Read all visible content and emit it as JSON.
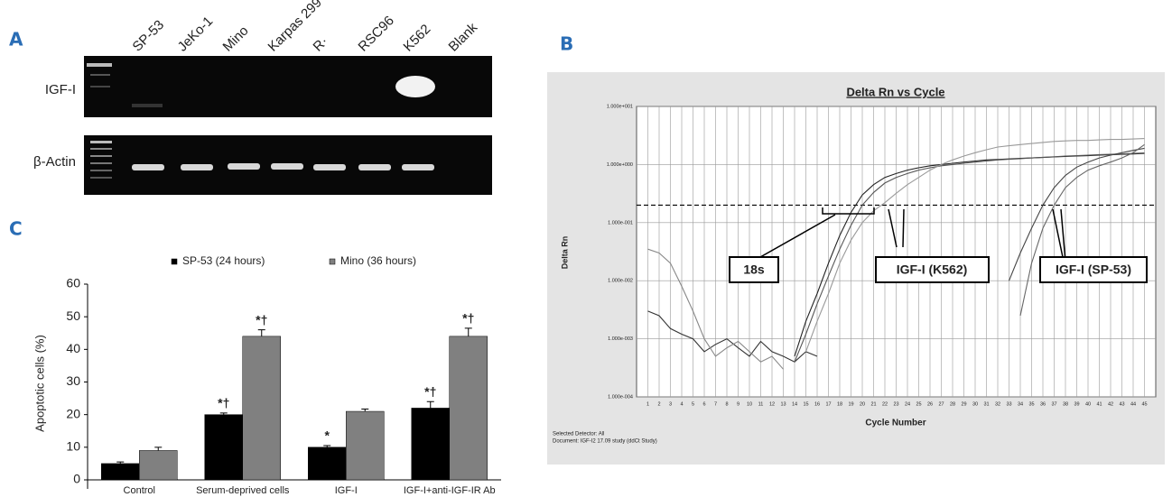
{
  "gel": {
    "label": "A",
    "lanes": [
      "SP-53",
      "JeKo-1",
      "Mino",
      "Karpas 299",
      "R·",
      "RSC96",
      "K562",
      "Blank"
    ],
    "rows": [
      "IGF-I",
      "β-Actin"
    ]
  },
  "chart_data": [
    {
      "type": "line",
      "panel": "B",
      "title": "Delta Rn vs Cycle",
      "xlabel": "Cycle Number",
      "ylabel": "Delta Rn",
      "log_y": true,
      "grid": true,
      "xlim": [
        0,
        46
      ],
      "xticks": [
        1,
        2,
        3,
        4,
        5,
        6,
        7,
        8,
        9,
        10,
        11,
        12,
        13,
        14,
        15,
        16,
        17,
        18,
        19,
        20,
        21,
        22,
        23,
        24,
        25,
        26,
        27,
        28,
        29,
        30,
        31,
        32,
        33,
        34,
        35,
        36,
        37,
        38,
        39,
        40,
        41,
        42,
        43,
        44,
        45
      ],
      "ylim": [
        0.0001,
        10
      ],
      "yticks": [
        {
          "value": 0.0001,
          "label": "1.000e-004"
        },
        {
          "value": 0.001,
          "label": "1.000e-003"
        },
        {
          "value": 0.01,
          "label": "1.000e-002"
        },
        {
          "value": 0.1,
          "label": "1.000e-001"
        },
        {
          "value": 1,
          "label": "1.000e+000"
        },
        {
          "value": 10,
          "label": "1.000e+001"
        }
      ],
      "threshold": 0.2,
      "annotations": [
        "18s",
        "IGF-I (K562)",
        "IGF-I (SP-53)"
      ],
      "footnotes": [
        "Selected Detector: All",
        "Document: IGF-I2 17.09 study (ddCt Study)"
      ],
      "series": [
        {
          "color": "#333333",
          "x": [
            1,
            2,
            3,
            4,
            5,
            6,
            7,
            8,
            9,
            10,
            11,
            12,
            13,
            14,
            15,
            16
          ],
          "values": [
            0.003,
            0.0025,
            0.0015,
            0.0012,
            0.001,
            0.0006,
            0.0008,
            0.001,
            0.0007,
            0.0005,
            0.0009,
            0.0006,
            0.0005,
            0.0004,
            0.0006,
            0.0005
          ]
        },
        {
          "color": "#888888",
          "x": [
            1,
            2,
            3,
            4,
            5,
            6,
            7,
            8,
            9,
            10,
            11,
            12,
            13
          ],
          "values": [
            0.035,
            0.03,
            0.02,
            0.008,
            0.003,
            0.001,
            0.0005,
            0.0007,
            0.0009,
            0.0006,
            0.0004,
            0.0005,
            0.0003
          ]
        },
        {
          "color": "#222222",
          "x": [
            14,
            15,
            16,
            17,
            18,
            19,
            20,
            21,
            22,
            23,
            24,
            25,
            26,
            27,
            28,
            29,
            30,
            31,
            32,
            33,
            34,
            35,
            36,
            37,
            38,
            39,
            40,
            41,
            42,
            43,
            44,
            45
          ],
          "values": [
            0.0005,
            0.002,
            0.006,
            0.02,
            0.06,
            0.15,
            0.3,
            0.45,
            0.6,
            0.7,
            0.8,
            0.88,
            0.95,
            1.0,
            1.05,
            1.1,
            1.15,
            1.2,
            1.22,
            1.25,
            1.28,
            1.3,
            1.32,
            1.35,
            1.38,
            1.4,
            1.42,
            1.45,
            1.47,
            1.5,
            1.52,
            1.55
          ]
        },
        {
          "color": "#555555",
          "x": [
            14,
            15,
            16,
            17,
            18,
            19,
            20,
            21,
            22,
            23,
            24,
            25,
            26,
            27,
            28,
            29,
            30,
            31,
            32,
            33,
            34,
            35,
            36,
            37,
            38,
            39,
            40,
            41,
            42,
            43,
            44,
            45
          ],
          "values": [
            0.0004,
            0.0012,
            0.004,
            0.012,
            0.035,
            0.09,
            0.2,
            0.33,
            0.48,
            0.6,
            0.7,
            0.8,
            0.88,
            0.95,
            1.0,
            1.05,
            1.1,
            1.15,
            1.2,
            1.23,
            1.26,
            1.3,
            1.33,
            1.36,
            1.4,
            1.42,
            1.45,
            1.48,
            1.5,
            1.52,
            1.55,
            1.58
          ]
        },
        {
          "color": "#999999",
          "x": [
            15,
            16,
            17,
            18,
            19,
            20,
            21,
            22,
            23,
            24,
            25,
            26,
            27,
            28,
            29,
            30,
            31,
            32,
            33,
            34,
            35,
            36,
            37,
            38,
            39,
            40,
            41,
            42,
            43,
            44,
            45
          ],
          "values": [
            0.0006,
            0.002,
            0.006,
            0.02,
            0.05,
            0.1,
            0.16,
            0.22,
            0.32,
            0.45,
            0.6,
            0.8,
            1.0,
            1.2,
            1.4,
            1.6,
            1.8,
            2.0,
            2.1,
            2.2,
            2.3,
            2.4,
            2.5,
            2.55,
            2.6,
            2.6,
            2.65,
            2.7,
            2.7,
            2.75,
            2.8
          ]
        },
        {
          "color": "#444444",
          "x": [
            33,
            34,
            35,
            36,
            37,
            38,
            39,
            40,
            41,
            42,
            43,
            44,
            45
          ],
          "values": [
            0.01,
            0.03,
            0.08,
            0.2,
            0.4,
            0.65,
            0.9,
            1.1,
            1.3,
            1.45,
            1.6,
            1.75,
            1.9
          ]
        },
        {
          "color": "#666666",
          "x": [
            34,
            35,
            36,
            37,
            38,
            39,
            40,
            41,
            42,
            43,
            44,
            45
          ],
          "values": [
            0.0025,
            0.02,
            0.08,
            0.2,
            0.4,
            0.6,
            0.8,
            0.95,
            1.1,
            1.3,
            1.6,
            2.2
          ]
        }
      ]
    },
    {
      "type": "bar",
      "panel": "C",
      "ylabel": "Apoptotic cells (%)",
      "categories": [
        "Control",
        "Serum-deprived cells",
        "IGF-I",
        "IGF-I+anti-IGF-IR Ab"
      ],
      "ylim": [
        0,
        60
      ],
      "yticks": [
        0,
        10,
        20,
        30,
        40,
        50,
        60
      ],
      "series": [
        {
          "name": "SP-53 (24 hours)",
          "color": "#000000",
          "values": [
            5,
            20,
            10,
            22
          ],
          "errors": [
            0.5,
            0.5,
            0.5,
            2
          ]
        },
        {
          "name": "Mino (36 hours)",
          "color": "#808080",
          "values": [
            9,
            44,
            21,
            44
          ],
          "errors": [
            1,
            2,
            0.7,
            2.5
          ]
        }
      ],
      "annotations": [
        {
          "text": "*†",
          "series": 0,
          "category": 1
        },
        {
          "text": "*",
          "series": 0,
          "category": 2
        },
        {
          "text": "*†",
          "series": 0,
          "category": 3
        },
        {
          "text": "*†",
          "series": 1,
          "category": 1
        },
        {
          "text": "*†",
          "series": 1,
          "category": 3
        }
      ]
    }
  ]
}
